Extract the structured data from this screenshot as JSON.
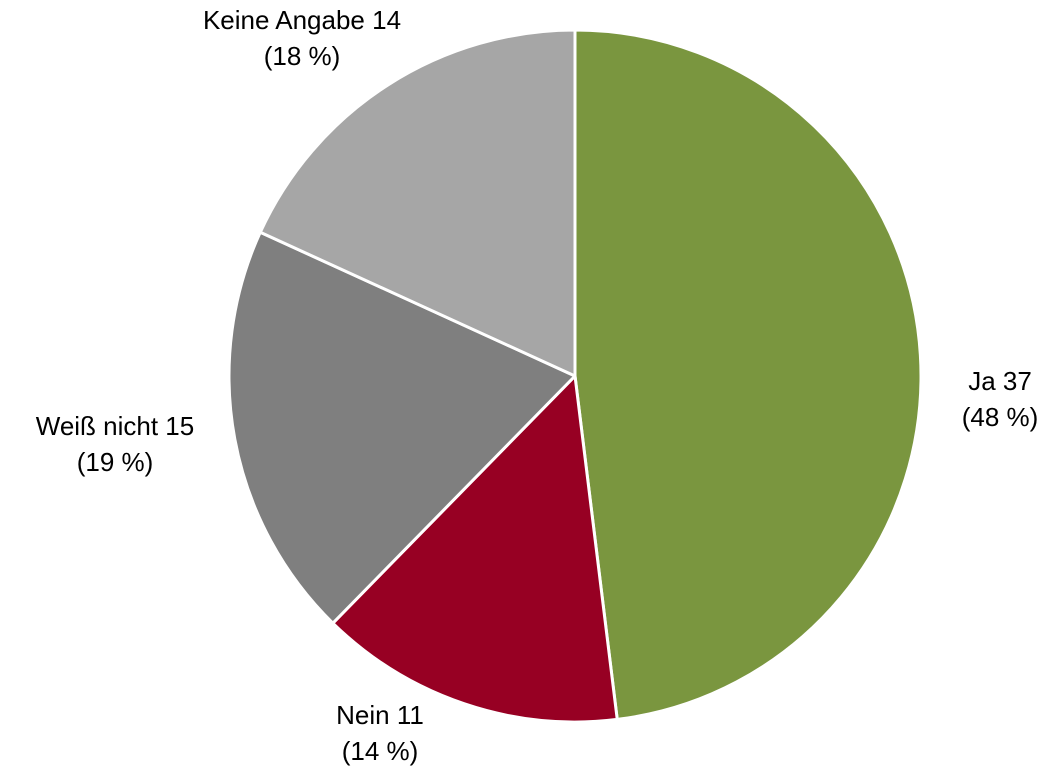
{
  "chart_data": {
    "type": "pie",
    "values": [
      37,
      11,
      15,
      14
    ],
    "value_labels": [
      "Ja 37",
      "Nein 11",
      "Weiß nicht 15",
      "Keine Angabe 14"
    ],
    "percent_labels": [
      "(48 %)",
      "(14 %)",
      "(19 %)",
      "(18 %)"
    ],
    "colors": [
      "#7a963f",
      "#970023",
      "#7f7f7f",
      "#a6a6a6"
    ]
  }
}
